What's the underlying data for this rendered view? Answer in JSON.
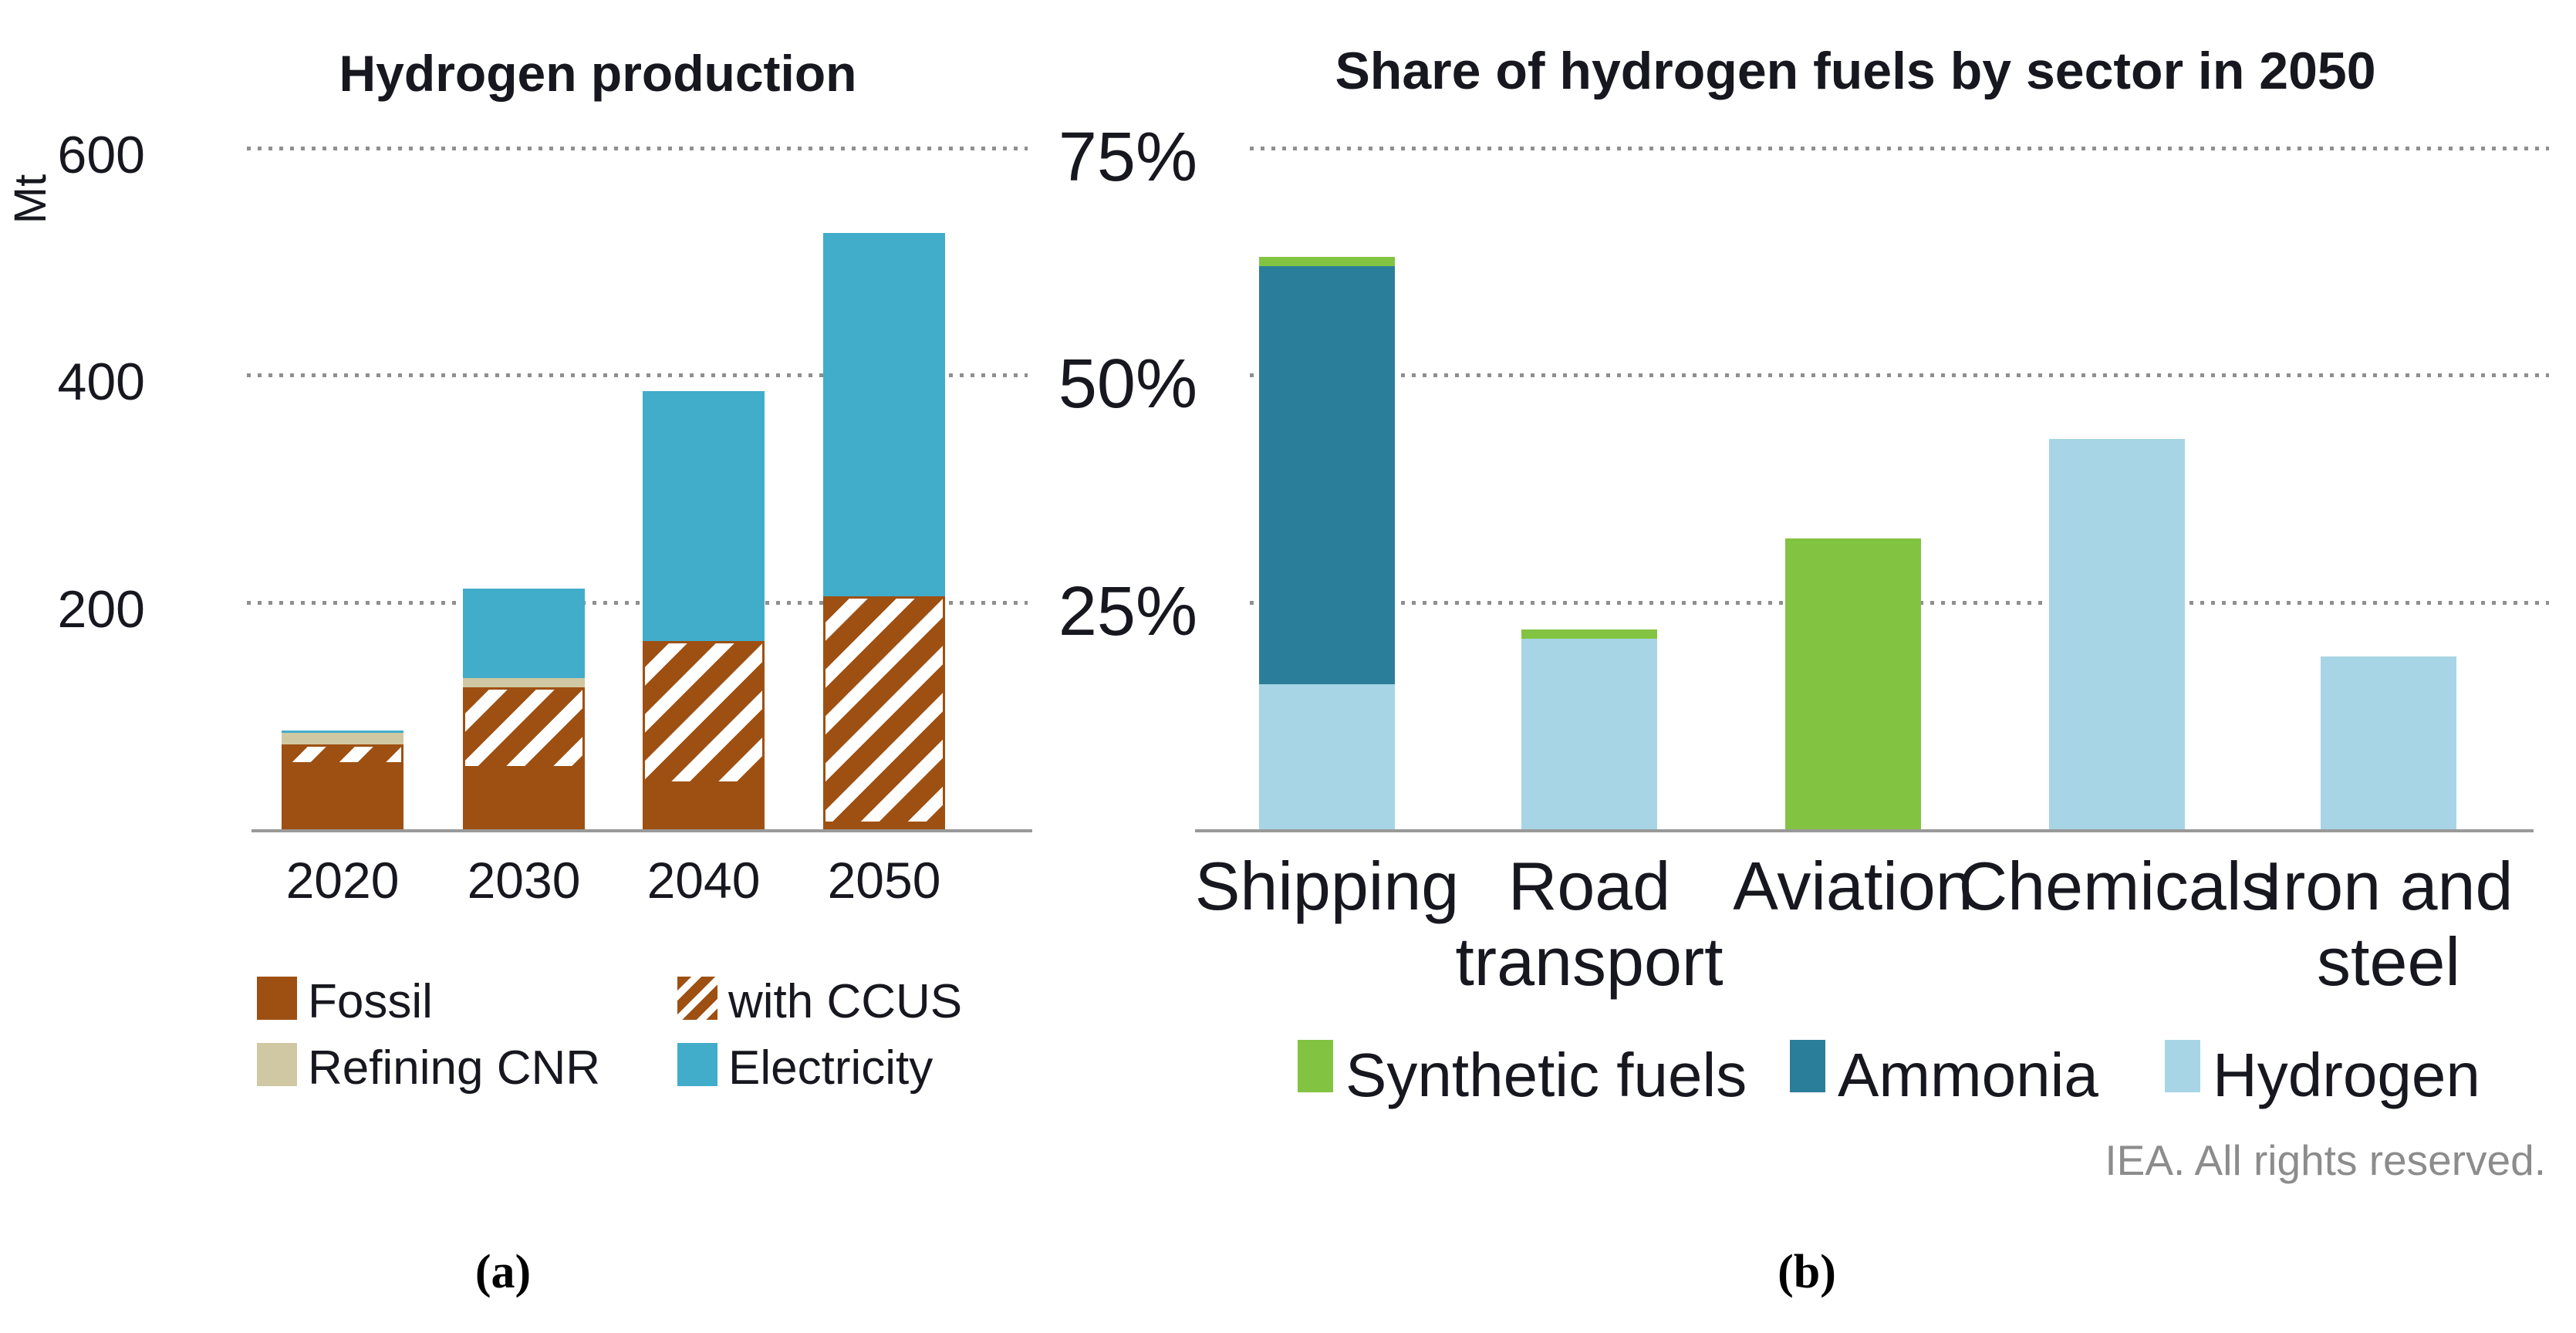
{
  "figure": {
    "panel_a_label": "(a)",
    "panel_b_label": "(b)",
    "credit": "IEA. All rights reserved."
  },
  "chart_data": [
    {
      "id": "hydrogen-production",
      "type": "bar",
      "stacked": true,
      "title": "Hydrogen production",
      "ylabel": "Mt",
      "ylim": [
        0,
        600
      ],
      "grid": "dotted-horizontal",
      "legend_position": "bottom-two-columns",
      "yticks": [
        {
          "value": 200,
          "label": "200"
        },
        {
          "value": 400,
          "label": "400"
        },
        {
          "value": 600,
          "label": "600"
        }
      ],
      "categories": [
        "2020",
        "2030",
        "2040",
        "2050"
      ],
      "category_lines": [
        [
          "2020"
        ],
        [
          "2030"
        ],
        [
          "2040"
        ],
        [
          "2050"
        ]
      ],
      "series": [
        {
          "name": "Fossil",
          "color": "#9e5012",
          "pattern": "solid",
          "values": [
            57,
            54,
            40,
            5
          ]
        },
        {
          "name": "with CCUS",
          "color": "#9e5012",
          "pattern": "hatch",
          "values": [
            18,
            71,
            126,
            200
          ]
        },
        {
          "name": "Refining CNR",
          "color": "#cfc8a2",
          "pattern": "solid",
          "values": [
            10,
            8,
            0,
            0
          ]
        },
        {
          "name": "Electricity",
          "color": "#41adca",
          "pattern": "solid",
          "values": [
            2,
            79,
            220,
            320
          ]
        }
      ],
      "legend_order": [
        "Fossil",
        "with CCUS",
        "Refining CNR",
        "Electricity"
      ]
    },
    {
      "id": "share-of-hydrogen-fuels-by-sector",
      "type": "bar",
      "stacked": true,
      "title": "Share of hydrogen fuels by sector in 2050",
      "ylabel": "",
      "ylim": [
        0,
        75
      ],
      "unit": "%",
      "grid": "dotted-horizontal",
      "legend_position": "bottom-row",
      "yticks": [
        {
          "value": 25,
          "label": "25%"
        },
        {
          "value": 50,
          "label": "50%"
        },
        {
          "value": 75,
          "label": "75%"
        }
      ],
      "categories": [
        "Shipping",
        "Road transport",
        "Aviation",
        "Chemicals",
        "Iron and steel"
      ],
      "category_lines": [
        [
          "Shipping"
        ],
        [
          "Road",
          "transport"
        ],
        [
          "Aviation"
        ],
        [
          "Chemicals"
        ],
        [
          "Iron and",
          "steel"
        ]
      ],
      "series": [
        {
          "name": "Hydrogen",
          "color": "#a7d5e5",
          "pattern": "solid",
          "values": [
            16,
            21,
            0,
            43,
            19
          ]
        },
        {
          "name": "Ammonia",
          "color": "#2b7e99",
          "pattern": "solid",
          "values": [
            46,
            0,
            0,
            0,
            0
          ]
        },
        {
          "name": "Synthetic fuels",
          "color": "#83c342",
          "pattern": "solid",
          "values": [
            1,
            1,
            32,
            0,
            0
          ]
        }
      ],
      "legend_order": [
        "Synthetic fuels",
        "Ammonia",
        "Hydrogen"
      ]
    }
  ]
}
